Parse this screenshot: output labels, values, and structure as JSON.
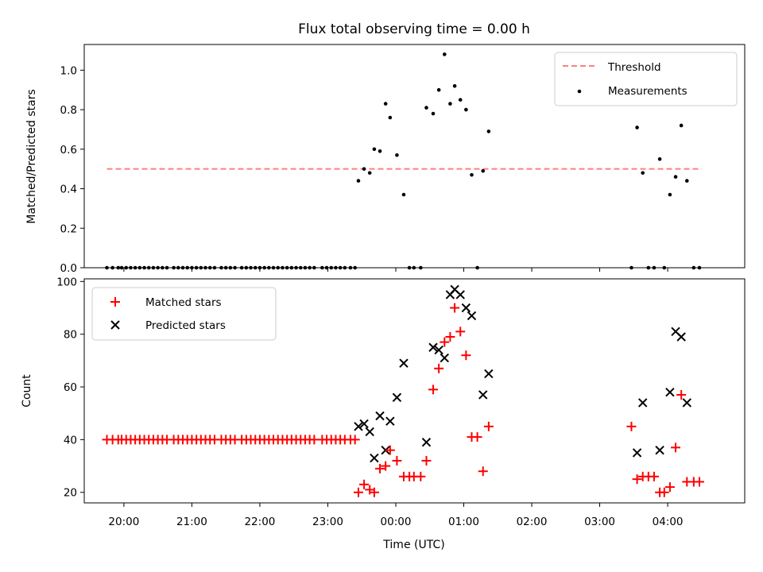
{
  "chart_data": [
    {
      "type": "scatter",
      "title": "Flux total observing time = 0.00 h",
      "xlabel": "",
      "ylabel": "Matched/Predicted stars",
      "ylim": [
        0,
        1.13
      ],
      "yticks": [
        "0.0",
        "0.2",
        "0.4",
        "0.6",
        "0.8",
        "1.0"
      ],
      "legend_position": "top-right",
      "threshold": {
        "name": "Threshold",
        "value": 0.5,
        "x_start": "19:45",
        "x_end": "04:30",
        "color": "#ff7f7f"
      },
      "series": [
        {
          "name": "Measurements",
          "color": "#000000",
          "points": [
            [
              "19:45",
              0
            ],
            [
              "19:50",
              0
            ],
            [
              "19:55",
              0
            ],
            [
              "19:58",
              0
            ],
            [
              "20:02",
              0
            ],
            [
              "20:06",
              0
            ],
            [
              "20:10",
              0
            ],
            [
              "20:14",
              0
            ],
            [
              "20:18",
              0
            ],
            [
              "20:22",
              0
            ],
            [
              "20:26",
              0
            ],
            [
              "20:30",
              0
            ],
            [
              "20:34",
              0
            ],
            [
              "20:38",
              0
            ],
            [
              "20:44",
              0
            ],
            [
              "20:48",
              0
            ],
            [
              "20:52",
              0
            ],
            [
              "20:56",
              0
            ],
            [
              "21:00",
              0
            ],
            [
              "21:04",
              0
            ],
            [
              "21:08",
              0
            ],
            [
              "21:12",
              0
            ],
            [
              "21:16",
              0
            ],
            [
              "21:20",
              0
            ],
            [
              "21:26",
              0
            ],
            [
              "21:30",
              0
            ],
            [
              "21:34",
              0
            ],
            [
              "21:38",
              0
            ],
            [
              "21:44",
              0
            ],
            [
              "21:48",
              0
            ],
            [
              "21:52",
              0
            ],
            [
              "21:56",
              0
            ],
            [
              "22:00",
              0
            ],
            [
              "22:04",
              0
            ],
            [
              "22:08",
              0
            ],
            [
              "22:12",
              0
            ],
            [
              "22:16",
              0
            ],
            [
              "22:20",
              0
            ],
            [
              "22:24",
              0
            ],
            [
              "22:28",
              0
            ],
            [
              "22:32",
              0
            ],
            [
              "22:36",
              0
            ],
            [
              "22:40",
              0
            ],
            [
              "22:44",
              0
            ],
            [
              "22:48",
              0
            ],
            [
              "22:55",
              0
            ],
            [
              "22:59",
              0
            ],
            [
              "23:03",
              0
            ],
            [
              "23:07",
              0
            ],
            [
              "23:11",
              0
            ],
            [
              "23:15",
              0
            ],
            [
              "23:20",
              0
            ],
            [
              "23:24",
              0
            ],
            [
              "23:27",
              0.44
            ],
            [
              "23:32",
              0.5
            ],
            [
              "23:37",
              0.48
            ],
            [
              "23:41",
              0.6
            ],
            [
              "23:46",
              0.59
            ],
            [
              "23:51",
              0.83
            ],
            [
              "23:55",
              0.76
            ],
            [
              "00:01",
              0.57
            ],
            [
              "00:07",
              0.37
            ],
            [
              "00:12",
              0
            ],
            [
              "00:16",
              0
            ],
            [
              "00:22",
              0
            ],
            [
              "00:27",
              0.81
            ],
            [
              "00:33",
              0.78
            ],
            [
              "00:38",
              0.9
            ],
            [
              "00:43",
              1.08
            ],
            [
              "00:48",
              0.83
            ],
            [
              "00:52",
              0.92
            ],
            [
              "00:57",
              0.85
            ],
            [
              "01:02",
              0.8
            ],
            [
              "01:07",
              0.47
            ],
            [
              "01:12",
              0
            ],
            [
              "01:17",
              0.49
            ],
            [
              "01:22",
              0.69
            ],
            [
              "03:28",
              0
            ],
            [
              "03:33",
              0.71
            ],
            [
              "03:38",
              0.48
            ],
            [
              "03:43",
              0
            ],
            [
              "03:48",
              0
            ],
            [
              "03:53",
              0.55
            ],
            [
              "03:57",
              0
            ],
            [
              "04:02",
              0.37
            ],
            [
              "04:07",
              0.46
            ],
            [
              "04:12",
              0.72
            ],
            [
              "04:17",
              0.44
            ],
            [
              "04:23",
              0
            ],
            [
              "04:28",
              0
            ]
          ]
        }
      ]
    },
    {
      "type": "scatter",
      "title": "",
      "xlabel": "Time (UTC)",
      "ylabel": "Count",
      "ylim": [
        16,
        101
      ],
      "yticks": [
        "20",
        "40",
        "60",
        "80",
        "100"
      ],
      "xticks": [
        "20:00",
        "21:00",
        "22:00",
        "23:00",
        "00:00",
        "01:00",
        "02:00",
        "03:00",
        "04:00"
      ],
      "xlim": [
        "19:25",
        "05:08"
      ],
      "legend_position": "top-left",
      "series": [
        {
          "name": "Matched stars",
          "color": "#ff0000",
          "marker": "plus",
          "points": [
            [
              "19:45",
              40
            ],
            [
              "19:50",
              40
            ],
            [
              "19:55",
              40
            ],
            [
              "19:58",
              40
            ],
            [
              "20:02",
              40
            ],
            [
              "20:06",
              40
            ],
            [
              "20:10",
              40
            ],
            [
              "20:14",
              40
            ],
            [
              "20:18",
              40
            ],
            [
              "20:22",
              40
            ],
            [
              "20:26",
              40
            ],
            [
              "20:30",
              40
            ],
            [
              "20:34",
              40
            ],
            [
              "20:38",
              40
            ],
            [
              "20:44",
              40
            ],
            [
              "20:48",
              40
            ],
            [
              "20:52",
              40
            ],
            [
              "20:56",
              40
            ],
            [
              "21:00",
              40
            ],
            [
              "21:04",
              40
            ],
            [
              "21:08",
              40
            ],
            [
              "21:12",
              40
            ],
            [
              "21:16",
              40
            ],
            [
              "21:20",
              40
            ],
            [
              "21:26",
              40
            ],
            [
              "21:30",
              40
            ],
            [
              "21:34",
              40
            ],
            [
              "21:38",
              40
            ],
            [
              "21:44",
              40
            ],
            [
              "21:48",
              40
            ],
            [
              "21:52",
              40
            ],
            [
              "21:56",
              40
            ],
            [
              "22:00",
              40
            ],
            [
              "22:04",
              40
            ],
            [
              "22:08",
              40
            ],
            [
              "22:12",
              40
            ],
            [
              "22:16",
              40
            ],
            [
              "22:20",
              40
            ],
            [
              "22:24",
              40
            ],
            [
              "22:28",
              40
            ],
            [
              "22:32",
              40
            ],
            [
              "22:36",
              40
            ],
            [
              "22:40",
              40
            ],
            [
              "22:44",
              40
            ],
            [
              "22:48",
              40
            ],
            [
              "22:55",
              40
            ],
            [
              "22:59",
              40
            ],
            [
              "23:03",
              40
            ],
            [
              "23:07",
              40
            ],
            [
              "23:11",
              40
            ],
            [
              "23:15",
              40
            ],
            [
              "23:20",
              40
            ],
            [
              "23:24",
              40
            ],
            [
              "23:27",
              20
            ],
            [
              "23:32",
              23
            ],
            [
              "23:37",
              21
            ],
            [
              "23:41",
              20
            ],
            [
              "23:46",
              29
            ],
            [
              "23:51",
              30
            ],
            [
              "23:55",
              36
            ],
            [
              "00:01",
              32
            ],
            [
              "00:07",
              26
            ],
            [
              "00:12",
              26
            ],
            [
              "00:16",
              26
            ],
            [
              "00:22",
              26
            ],
            [
              "00:27",
              32
            ],
            [
              "00:33",
              59
            ],
            [
              "00:38",
              67
            ],
            [
              "00:43",
              77
            ],
            [
              "00:48",
              79
            ],
            [
              "00:52",
              90
            ],
            [
              "00:57",
              81
            ],
            [
              "01:02",
              72
            ],
            [
              "01:07",
              41
            ],
            [
              "01:12",
              41
            ],
            [
              "01:17",
              28
            ],
            [
              "01:22",
              45
            ],
            [
              "03:28",
              45
            ],
            [
              "03:33",
              25
            ],
            [
              "03:38",
              26
            ],
            [
              "03:43",
              26
            ],
            [
              "03:48",
              26
            ],
            [
              "03:53",
              20
            ],
            [
              "03:57",
              20
            ],
            [
              "04:02",
              22
            ],
            [
              "04:07",
              37
            ],
            [
              "04:12",
              57
            ],
            [
              "04:17",
              24
            ],
            [
              "04:23",
              24
            ],
            [
              "04:28",
              24
            ]
          ]
        },
        {
          "name": "Predicted stars",
          "color": "#000000",
          "marker": "x",
          "points": [
            [
              "23:27",
              45
            ],
            [
              "23:32",
              46
            ],
            [
              "23:37",
              43
            ],
            [
              "23:41",
              33
            ],
            [
              "23:46",
              49
            ],
            [
              "23:51",
              36
            ],
            [
              "23:55",
              47
            ],
            [
              "00:01",
              56
            ],
            [
              "00:07",
              69
            ],
            [
              "00:27",
              39
            ],
            [
              "00:33",
              75
            ],
            [
              "00:38",
              74
            ],
            [
              "00:43",
              71
            ],
            [
              "00:48",
              95
            ],
            [
              "00:52",
              97
            ],
            [
              "00:57",
              95
            ],
            [
              "01:02",
              90
            ],
            [
              "01:07",
              87
            ],
            [
              "01:17",
              57
            ],
            [
              "01:22",
              65
            ],
            [
              "03:33",
              35
            ],
            [
              "03:38",
              54
            ],
            [
              "03:53",
              36
            ],
            [
              "04:02",
              58
            ],
            [
              "04:07",
              81
            ],
            [
              "04:12",
              79
            ],
            [
              "04:17",
              54
            ]
          ]
        }
      ]
    }
  ]
}
